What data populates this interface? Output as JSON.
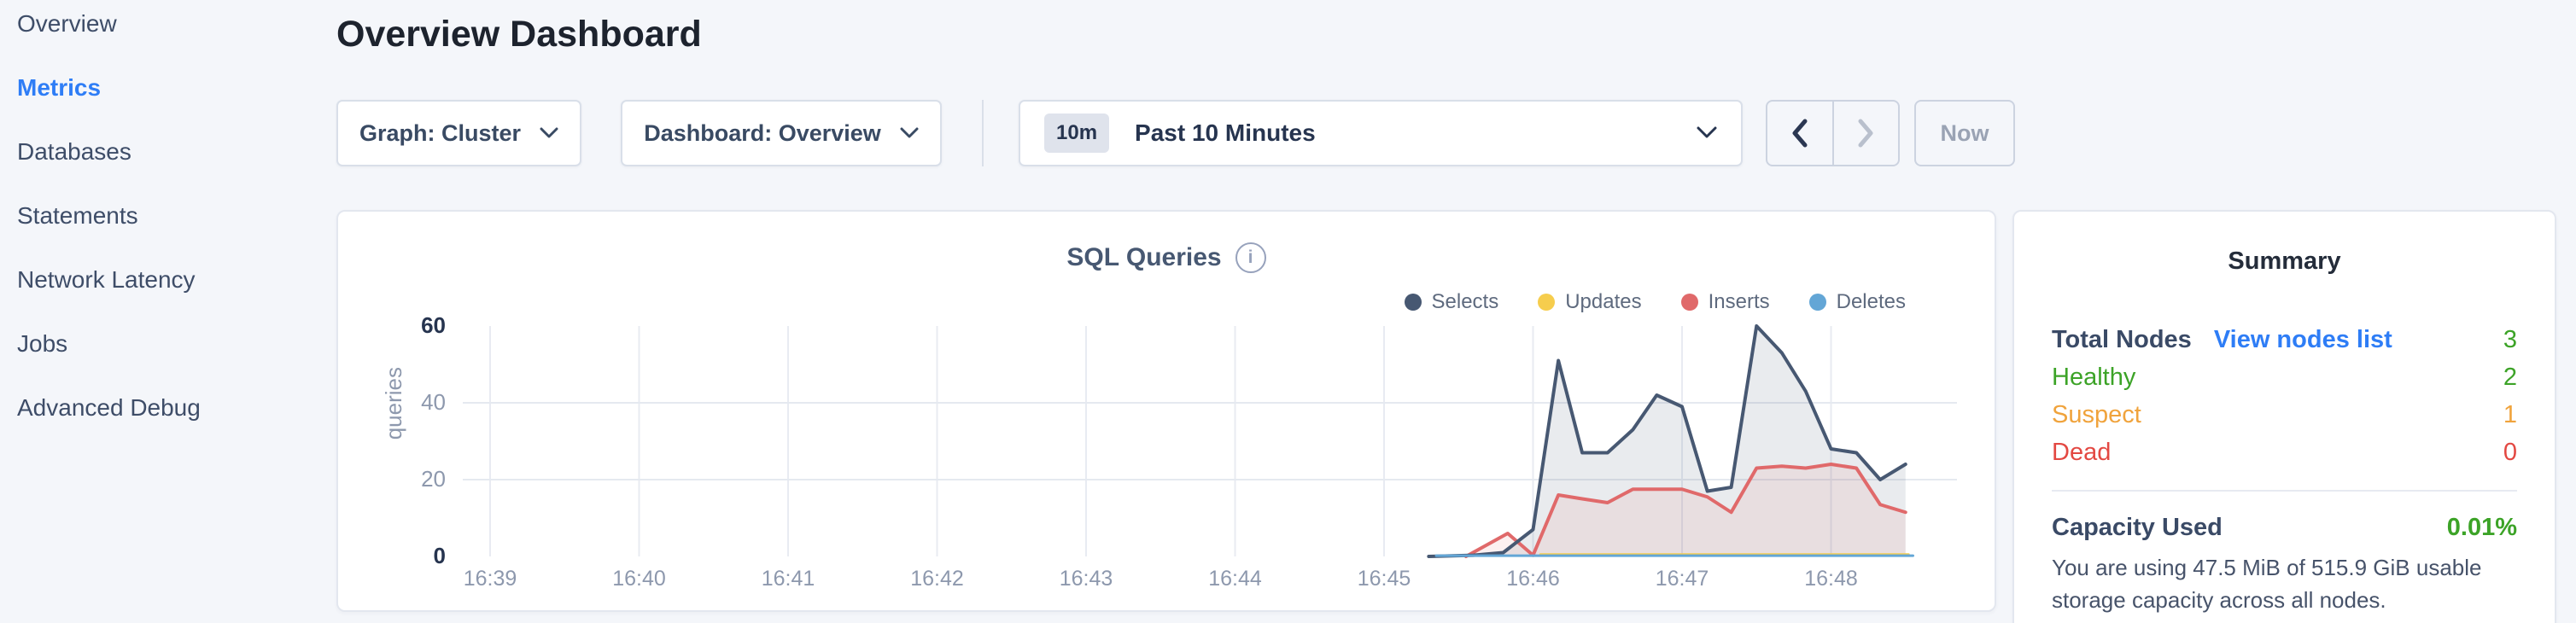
{
  "sidebar": {
    "items": [
      {
        "label": "Overview",
        "active": false
      },
      {
        "label": "Metrics",
        "active": true
      },
      {
        "label": "Databases",
        "active": false
      },
      {
        "label": "Statements",
        "active": false
      },
      {
        "label": "Network Latency",
        "active": false
      },
      {
        "label": "Jobs",
        "active": false
      },
      {
        "label": "Advanced Debug",
        "active": false
      }
    ]
  },
  "header": {
    "title": "Overview Dashboard"
  },
  "toolbar": {
    "graph_dropdown": {
      "label": "Graph: Cluster"
    },
    "dashboard_dropdown": {
      "label": "Dashboard: Overview"
    },
    "time_picker": {
      "badge": "10m",
      "label": "Past 10 Minutes"
    },
    "prev_enabled": true,
    "next_enabled": false,
    "now_label": "Now",
    "icons": [
      "chevron-down-icon",
      "chevron-left-icon",
      "chevron-right-icon"
    ]
  },
  "chart_data": {
    "type": "line",
    "title": "SQL Queries",
    "ylabel": "queries",
    "x_ticks": [
      "16:39",
      "16:40",
      "16:41",
      "16:42",
      "16:43",
      "16:44",
      "16:45",
      "16:46",
      "16:47",
      "16:48"
    ],
    "y_ticks": [
      0,
      20,
      40,
      60
    ],
    "ylim": [
      0,
      62
    ],
    "x_unit": "minutes since 16:39",
    "grid": true,
    "legend_position": "top-right",
    "series": [
      {
        "name": "Selects",
        "color": "#475872",
        "fill": "rgba(71,88,114,0.12)",
        "points": [
          [
            6.3,
            0
          ],
          [
            6.6,
            0.3
          ],
          [
            6.8,
            1
          ],
          [
            7.0,
            7
          ],
          [
            7.17,
            51
          ],
          [
            7.33,
            27
          ],
          [
            7.5,
            27
          ],
          [
            7.67,
            33
          ],
          [
            7.83,
            42
          ],
          [
            8.0,
            39
          ],
          [
            8.17,
            17
          ],
          [
            8.33,
            18
          ],
          [
            8.5,
            60
          ],
          [
            8.67,
            53
          ],
          [
            8.83,
            43
          ],
          [
            9.0,
            28
          ],
          [
            9.17,
            27
          ],
          [
            9.33,
            20
          ],
          [
            9.5,
            24
          ]
        ]
      },
      {
        "name": "Updates",
        "color": "#f6cd4d",
        "fill": "none",
        "points": [
          [
            7.05,
            0.5
          ],
          [
            9.52,
            0.5
          ]
        ]
      },
      {
        "name": "Inserts",
        "color": "#e0696a",
        "fill": "rgba(224,105,106,0.10)",
        "points": [
          [
            6.55,
            0
          ],
          [
            6.83,
            6
          ],
          [
            7.0,
            0.3
          ],
          [
            7.17,
            16
          ],
          [
            7.33,
            15
          ],
          [
            7.5,
            14
          ],
          [
            7.67,
            17.5
          ],
          [
            7.83,
            17.5
          ],
          [
            8.0,
            17.5
          ],
          [
            8.17,
            15.5
          ],
          [
            8.33,
            11.5
          ],
          [
            8.5,
            23
          ],
          [
            8.67,
            23.5
          ],
          [
            8.83,
            23
          ],
          [
            9.0,
            24
          ],
          [
            9.17,
            23
          ],
          [
            9.33,
            13.5
          ],
          [
            9.5,
            11.5
          ]
        ]
      },
      {
        "name": "Deletes",
        "color": "#63a6d6",
        "fill": "none",
        "points": [
          [
            6.35,
            0.2
          ],
          [
            9.55,
            0.2
          ]
        ]
      }
    ],
    "info_icon": "info-circle-icon"
  },
  "summary": {
    "title": "Summary",
    "total_nodes": {
      "label": "Total Nodes",
      "link": "View nodes list",
      "value": "3"
    },
    "statuses": [
      {
        "label": "Healthy",
        "value": "2",
        "color": "#3ca327"
      },
      {
        "label": "Suspect",
        "value": "1",
        "color": "#f0a33c"
      },
      {
        "label": "Dead",
        "value": "0",
        "color": "#e34842"
      }
    ],
    "capacity": {
      "label": "Capacity Used",
      "value": "0.01%",
      "description": "You are using 47.5 MiB of 515.9 GiB usable storage capacity across all nodes."
    }
  },
  "colors": {
    "accent_blue": "#2e7df6",
    "green": "#3ca327",
    "orange": "#f0a33c",
    "red": "#e34842",
    "navy_text": "#3a4a66",
    "page_bg": "#f4f6fa"
  }
}
